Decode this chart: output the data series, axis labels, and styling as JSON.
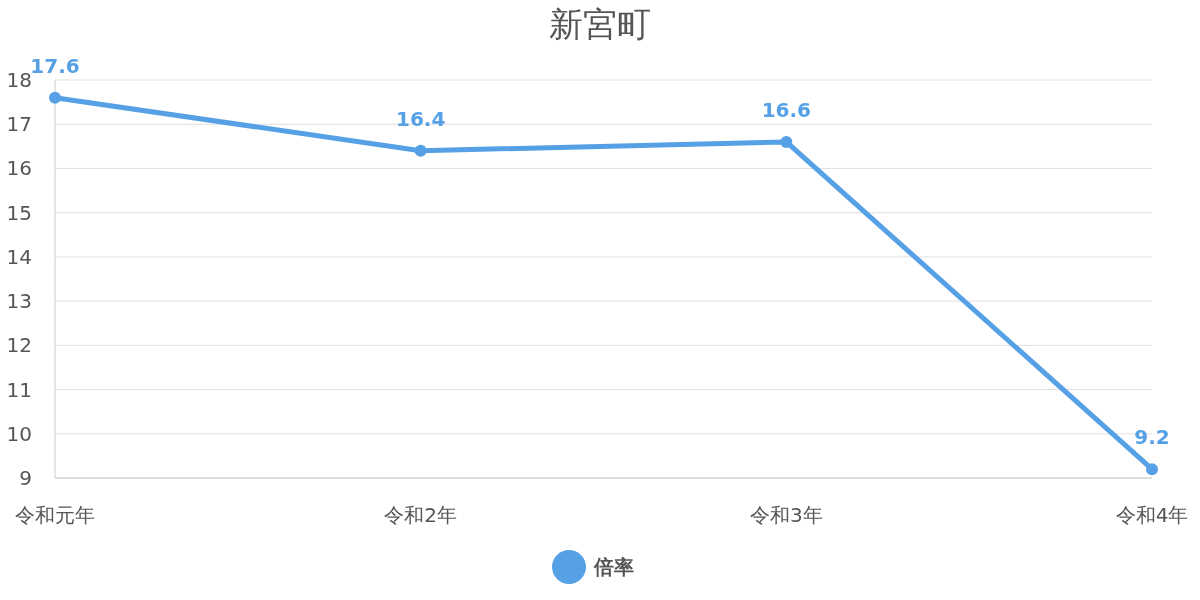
{
  "chart_data": {
    "type": "line",
    "title": "新宮町",
    "categories": [
      "令和元年",
      "令和2年",
      "令和3年",
      "令和4年"
    ],
    "series": [
      {
        "name": "倍率",
        "color": "#56a0e6",
        "values": [
          17.6,
          16.4,
          16.6,
          9.2
        ]
      }
    ],
    "ylim": [
      9,
      18
    ],
    "yticks": [
      9,
      10,
      11,
      12,
      13,
      14,
      15,
      16,
      17,
      18
    ],
    "grid": "y",
    "legend": "bottom",
    "marker": "circle",
    "line_style": "solid",
    "data_labels": true
  }
}
